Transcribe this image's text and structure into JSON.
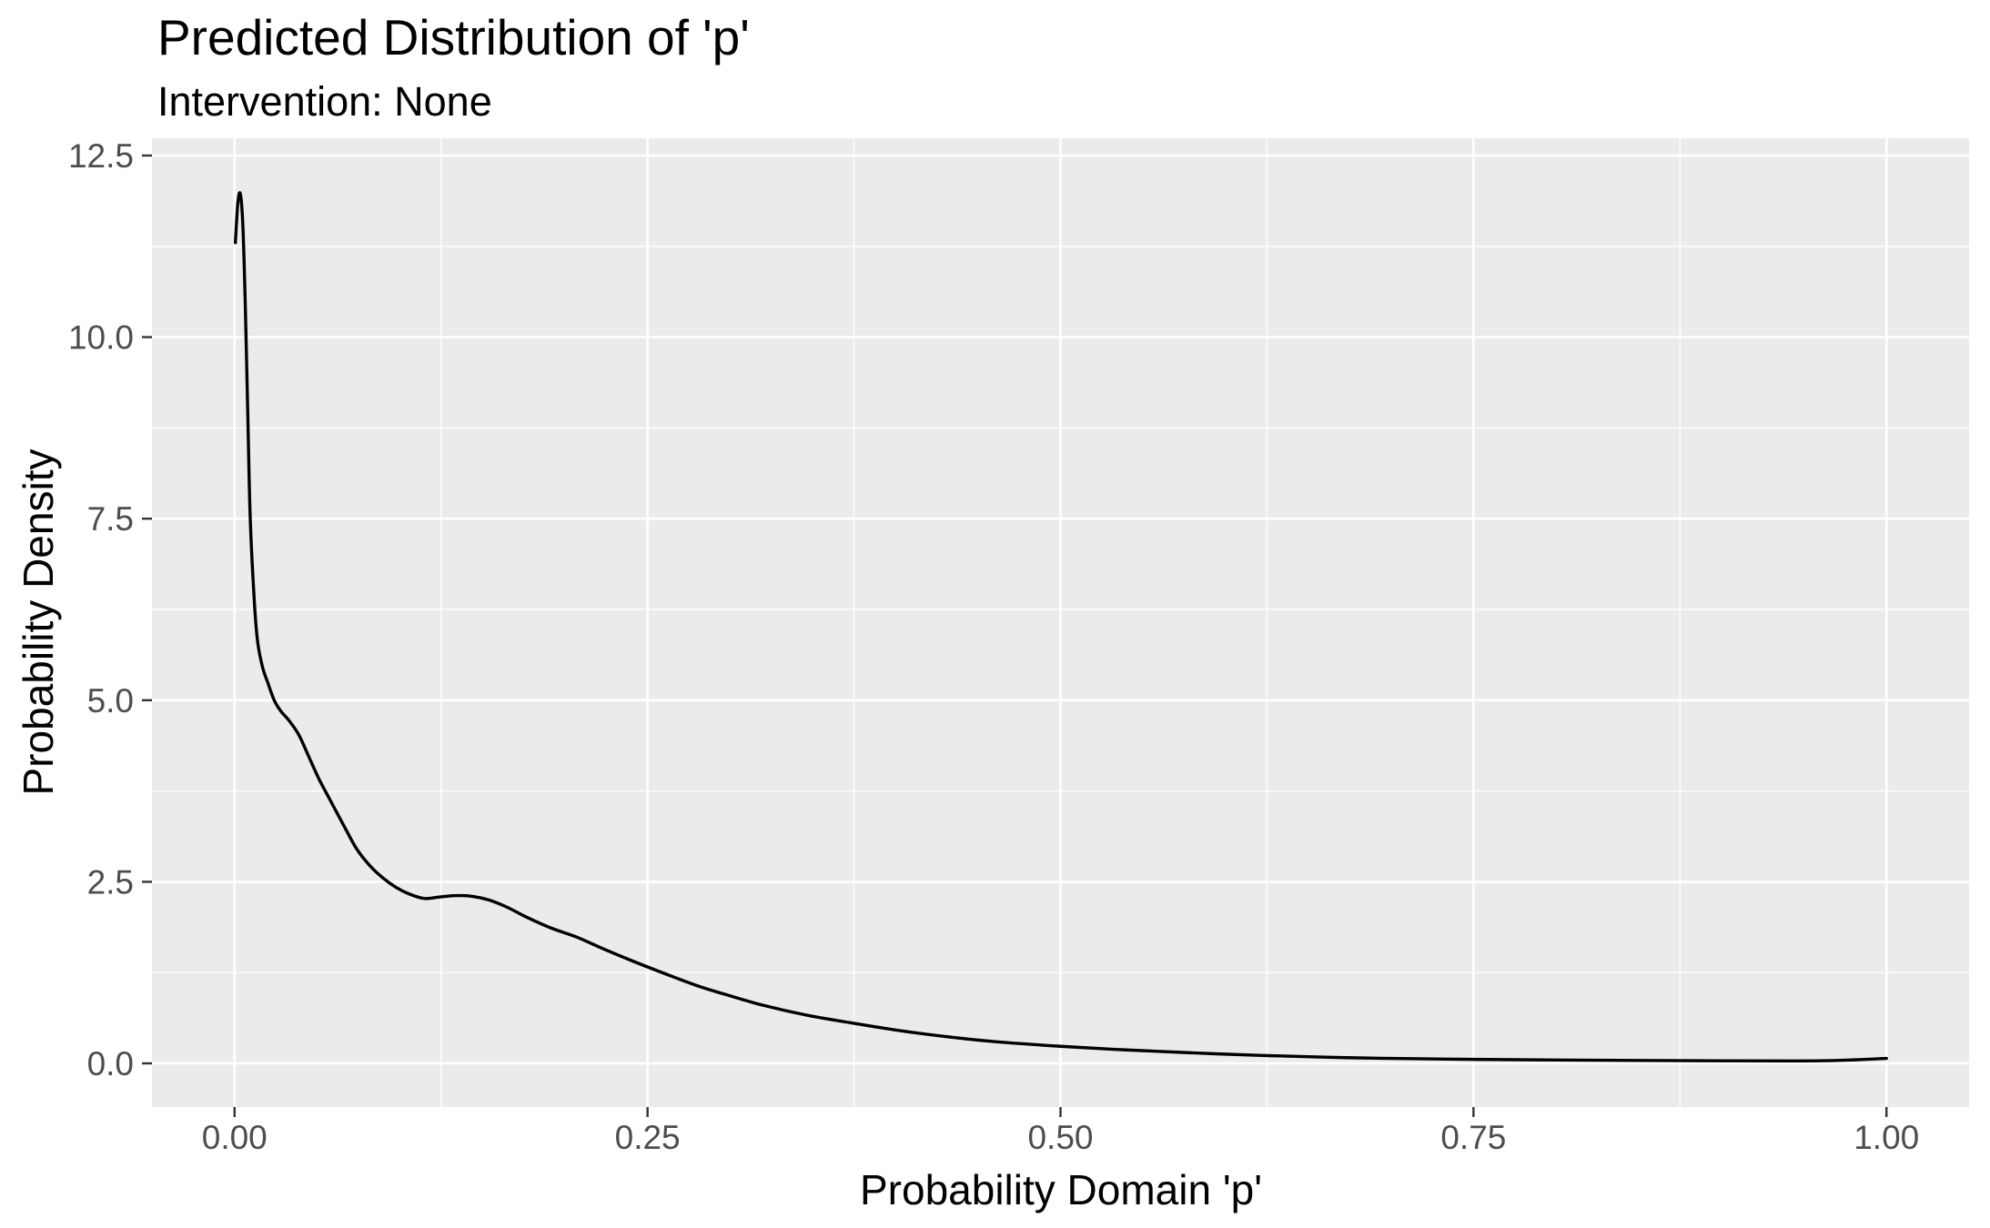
{
  "title": "Predicted Distribution of 'p'",
  "subtitle": "Intervention: None",
  "chart_data": {
    "type": "line",
    "subtype": "density-curve",
    "title": "Predicted Distribution of 'p'",
    "subtitle": "Intervention: None",
    "xlabel": "Probability Domain 'p'",
    "ylabel": "Probability Density",
    "xlim": [
      -0.05,
      1.05
    ],
    "ylim": [
      -0.601,
      12.738
    ],
    "grid": "on",
    "legend": "none",
    "x_ticks": {
      "values": [
        0.0,
        0.25,
        0.5,
        0.75,
        1.0
      ],
      "labels": [
        "0.00",
        "0.25",
        "0.50",
        "0.75",
        "1.00"
      ]
    },
    "y_ticks": {
      "values": [
        0.0,
        2.5,
        5.0,
        7.5,
        10.0,
        12.5
      ],
      "labels": [
        "0.0",
        "2.5",
        "5.0",
        "7.5",
        "10.0",
        "12.5"
      ]
    },
    "x_minor": [
      0.125,
      0.375,
      0.625,
      0.875
    ],
    "y_minor": [
      1.25,
      3.75,
      6.25,
      8.75,
      11.25
    ],
    "series": [
      {
        "name": "density",
        "color": "#000000",
        "points": [
          [
            0.0005,
            11.3
          ],
          [
            0.002,
            11.85
          ],
          [
            0.0035,
            11.97
          ],
          [
            0.005,
            11.55
          ],
          [
            0.0065,
            10.45
          ],
          [
            0.008,
            8.95
          ],
          [
            0.0095,
            7.5
          ],
          [
            0.012,
            6.35
          ],
          [
            0.014,
            5.8
          ],
          [
            0.017,
            5.45
          ],
          [
            0.02,
            5.25
          ],
          [
            0.024,
            5.0
          ],
          [
            0.028,
            4.85
          ],
          [
            0.033,
            4.72
          ],
          [
            0.039,
            4.52
          ],
          [
            0.045,
            4.22
          ],
          [
            0.051,
            3.92
          ],
          [
            0.058,
            3.62
          ],
          [
            0.066,
            3.28
          ],
          [
            0.074,
            2.95
          ],
          [
            0.082,
            2.72
          ],
          [
            0.09,
            2.55
          ],
          [
            0.098,
            2.42
          ],
          [
            0.106,
            2.33
          ],
          [
            0.115,
            2.27
          ],
          [
            0.124,
            2.29
          ],
          [
            0.134,
            2.31
          ],
          [
            0.144,
            2.3
          ],
          [
            0.154,
            2.25
          ],
          [
            0.165,
            2.15
          ],
          [
            0.178,
            2.0
          ],
          [
            0.192,
            1.86
          ],
          [
            0.207,
            1.74
          ],
          [
            0.224,
            1.57
          ],
          [
            0.242,
            1.4
          ],
          [
            0.26,
            1.24
          ],
          [
            0.28,
            1.07
          ],
          [
            0.3,
            0.93
          ],
          [
            0.32,
            0.8
          ],
          [
            0.345,
            0.67
          ],
          [
            0.37,
            0.57
          ],
          [
            0.4,
            0.46
          ],
          [
            0.43,
            0.37
          ],
          [
            0.46,
            0.3
          ],
          [
            0.5,
            0.235
          ],
          [
            0.54,
            0.185
          ],
          [
            0.58,
            0.145
          ],
          [
            0.62,
            0.11
          ],
          [
            0.66,
            0.085
          ],
          [
            0.7,
            0.068
          ],
          [
            0.75,
            0.055
          ],
          [
            0.8,
            0.046
          ],
          [
            0.85,
            0.04
          ],
          [
            0.9,
            0.036
          ],
          [
            0.94,
            0.034
          ],
          [
            0.97,
            0.04
          ],
          [
            1.0,
            0.068
          ]
        ]
      }
    ],
    "colors": {
      "panel_background": "#EBEBEB",
      "gridline": "#FFFFFF",
      "tick_mark": "#333333",
      "tick_label": "#4D4D4D",
      "axis_title": "#000000",
      "line": "#000000"
    }
  }
}
